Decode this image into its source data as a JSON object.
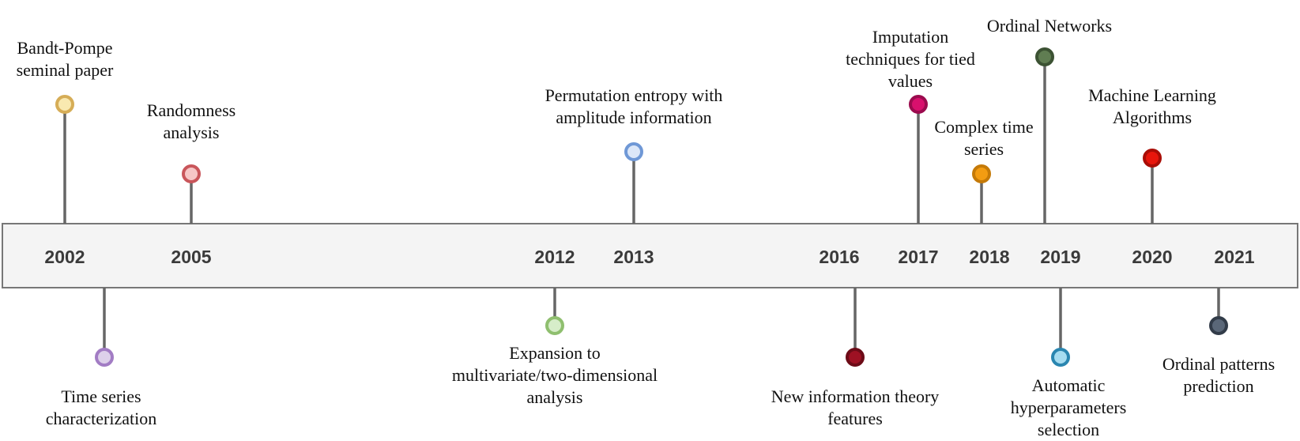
{
  "years": [
    "2002",
    "2005",
    "2012",
    "2013",
    "2016",
    "2017",
    "2018",
    "2019",
    "2020",
    "2021"
  ],
  "events": [
    {
      "id": "bandt-pompe",
      "lines": [
        "Bandt-Pompe",
        "seminal paper"
      ],
      "fill": "#f9e9b0",
      "stroke": "#d6ad57"
    },
    {
      "id": "time-series-characterization",
      "lines": [
        "Time series",
        "characterization"
      ],
      "fill": "#ddd0ea",
      "stroke": "#a27cc4"
    },
    {
      "id": "randomness-analysis",
      "lines": [
        "Randomness",
        "analysis"
      ],
      "fill": "#f6c6c6",
      "stroke": "#c9565b"
    },
    {
      "id": "expansion-multivariate",
      "lines": [
        "Expansion to",
        "multivariate/two-dimensional",
        "analysis"
      ],
      "fill": "#d6edc9",
      "stroke": "#8fbf6f"
    },
    {
      "id": "permutation-entropy-amplitude",
      "lines": [
        "Permutation entropy with",
        "amplitude information"
      ],
      "fill": "#dce7f8",
      "stroke": "#6f98d6"
    },
    {
      "id": "new-information-theory",
      "lines": [
        "New information theory",
        "features"
      ],
      "fill": "#9e1123",
      "stroke": "#6c0b17"
    },
    {
      "id": "imputation-tied-values",
      "lines": [
        "Imputation",
        "techniques for tied",
        "values"
      ],
      "fill": "#d8106d",
      "stroke": "#9b0b4e"
    },
    {
      "id": "complex-time-series",
      "lines": [
        "Complex time",
        "series"
      ],
      "fill": "#f39c12",
      "stroke": "#c57a08"
    },
    {
      "id": "ordinal-networks",
      "lines": [
        "Ordinal Networks"
      ],
      "fill": "#607d52",
      "stroke": "#3c5233"
    },
    {
      "id": "automatic-hyperparameters",
      "lines": [
        "Automatic",
        "hyperparameters",
        "selection"
      ],
      "fill": "#a6dcf0",
      "stroke": "#2a86b0"
    },
    {
      "id": "machine-learning",
      "lines": [
        "Machine Learning",
        "Algorithms"
      ],
      "fill": "#e8160c",
      "stroke": "#a90d06"
    },
    {
      "id": "ordinal-patterns-prediction",
      "lines": [
        "Ordinal patterns",
        "prediction"
      ],
      "fill": "#5a6778",
      "stroke": "#323c49"
    }
  ],
  "colors": {
    "band_fill": "#f4f4f4",
    "band_stroke": "#777777",
    "stem": "#666666",
    "year_text": "#3a3a3a"
  }
}
